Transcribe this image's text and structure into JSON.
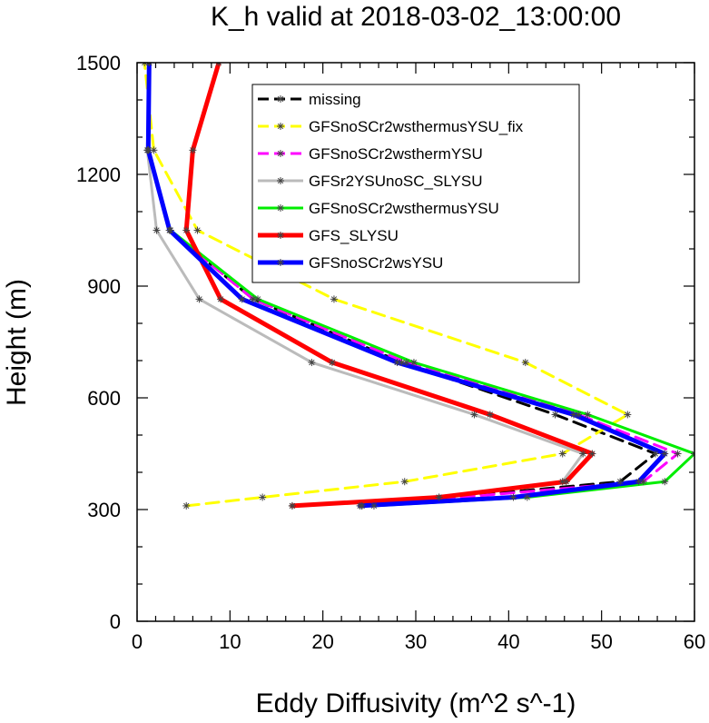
{
  "chart_data": {
    "type": "line",
    "title": "K_h valid at 2018-03-02_13:00:00",
    "xlabel": "Eddy Diffusivity (m^2 s^-1)",
    "ylabel": "Height (m)",
    "xlim": [
      0,
      60
    ],
    "ylim": [
      0,
      1500
    ],
    "xticks": [
      "0",
      "10",
      "20",
      "30",
      "40",
      "50",
      "60"
    ],
    "yticks": [
      "0",
      "300",
      "600",
      "900",
      "1200",
      "1500"
    ],
    "legend_position": "top-right",
    "series": [
      {
        "name": "missing",
        "color": "#000000",
        "style": "dash",
        "points": [
          [
            24.2,
            310
          ],
          [
            52,
            375
          ],
          [
            55.8,
            450
          ],
          [
            45,
            555
          ],
          [
            28.5,
            695
          ],
          [
            12.5,
            865
          ],
          [
            3.5,
            1050
          ],
          [
            1.2,
            1265
          ],
          [
            1.3,
            1500
          ]
        ]
      },
      {
        "name": "GFSnoSCr2wsthermusYSU_fix",
        "color": "#ffff00",
        "style": "dash",
        "points": [
          [
            5.3,
            310
          ],
          [
            13.5,
            333
          ],
          [
            28.8,
            375
          ],
          [
            45.8,
            450
          ],
          [
            52.8,
            555
          ],
          [
            41.8,
            695
          ],
          [
            21.2,
            865
          ],
          [
            6.5,
            1050
          ],
          [
            1.8,
            1265
          ],
          [
            0.8,
            1500
          ]
        ]
      },
      {
        "name": "GFSnoSCr2wsthermYSU",
        "color": "#ff00ff",
        "style": "dash",
        "points": [
          [
            24.2,
            310
          ],
          [
            54.5,
            375
          ],
          [
            58.2,
            450
          ],
          [
            47.5,
            555
          ],
          [
            29,
            695
          ],
          [
            12.5,
            865
          ],
          [
            3.5,
            1050
          ],
          [
            1.2,
            1265
          ],
          [
            1.3,
            1500
          ]
        ]
      },
      {
        "name": "GFSr2YSUnoSC_SLYSU",
        "color": "#bbbbbb",
        "style": "solid",
        "points": [
          [
            16.7,
            310
          ],
          [
            32.5,
            333
          ],
          [
            45.8,
            375
          ],
          [
            48,
            450
          ],
          [
            36.3,
            555
          ],
          [
            18.8,
            695
          ],
          [
            6.7,
            865
          ],
          [
            2.1,
            1050
          ],
          [
            1.1,
            1265
          ],
          [
            1.3,
            1500
          ]
        ]
      },
      {
        "name": "GFSnoSCr2wsthermusYSU",
        "color": "#00ee00",
        "style": "solid",
        "points": [
          [
            25.5,
            310
          ],
          [
            42,
            333
          ],
          [
            56.8,
            375
          ],
          [
            60,
            450
          ],
          [
            48.5,
            555
          ],
          [
            29.8,
            695
          ],
          [
            13,
            865
          ],
          [
            3.6,
            1050
          ],
          [
            1.2,
            1265
          ],
          [
            1.3,
            1500
          ]
        ]
      },
      {
        "name": "GFS_SLYSU",
        "color": "#ff0000",
        "style": "solid",
        "points": [
          [
            16.7,
            310
          ],
          [
            32.5,
            333
          ],
          [
            46.2,
            375
          ],
          [
            49,
            450
          ],
          [
            38,
            555
          ],
          [
            21,
            695
          ],
          [
            9,
            865
          ],
          [
            5.3,
            1050
          ],
          [
            6,
            1265
          ],
          [
            8.8,
            1500
          ]
        ]
      },
      {
        "name": "GFSnoSCr2wsYSU",
        "color": "#0000ff",
        "style": "solid",
        "points": [
          [
            24,
            310
          ],
          [
            40.5,
            333
          ],
          [
            54,
            375
          ],
          [
            56.8,
            450
          ],
          [
            47,
            555
          ],
          [
            28,
            695
          ],
          [
            11.3,
            865
          ],
          [
            3.5,
            1050
          ],
          [
            1.2,
            1265
          ],
          [
            1.3,
            1500
          ]
        ]
      }
    ]
  }
}
